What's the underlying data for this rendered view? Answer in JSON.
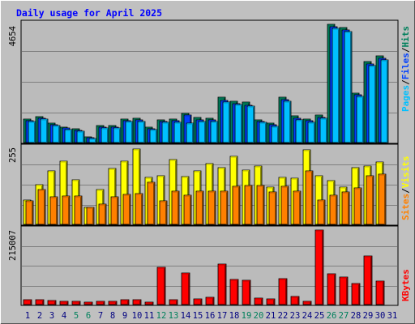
{
  "chart_data": [
    {
      "type": "bar",
      "title": "Daily usage for April 2025",
      "panel": "hits/files/pages",
      "ymax_label": "4654",
      "ylim": [
        0,
        4654
      ],
      "legend": {
        "placement": "right, vertical",
        "entries": [
          {
            "label": "Pages",
            "color": "#00C0FF"
          },
          {
            "label": "Files",
            "color": "#0040FF"
          },
          {
            "label": "Hits",
            "color": "#00805C"
          }
        ],
        "separator": "/"
      },
      "categories": [
        "1",
        "2",
        "3",
        "4",
        "5",
        "6",
        "7",
        "8",
        "9",
        "10",
        "11",
        "12",
        "13",
        "14",
        "15",
        "16",
        "17",
        "18",
        "19",
        "20",
        "21",
        "22",
        "23",
        "24",
        "25",
        "26",
        "27",
        "28",
        "29",
        "30",
        "31"
      ],
      "weekend_days": [
        "5",
        "6",
        "12",
        "13",
        "19",
        "20",
        "26",
        "27"
      ],
      "series": [
        {
          "name": "Hits",
          "values": [
            940,
            1020,
            760,
            620,
            540,
            220,
            680,
            680,
            940,
            960,
            600,
            900,
            910,
            1160,
            1000,
            960,
            1780,
            1640,
            1580,
            900,
            760,
            1800,
            1060,
            940,
            1080,
            4654,
            4520,
            1960,
            3200,
            3400,
            0
          ]
        },
        {
          "name": "Files",
          "values": [
            860,
            960,
            700,
            560,
            480,
            190,
            600,
            620,
            860,
            880,
            540,
            840,
            850,
            1080,
            900,
            880,
            1660,
            1540,
            1480,
            840,
            700,
            1700,
            960,
            860,
            1000,
            4560,
            4440,
            1880,
            3100,
            3300,
            0
          ]
        },
        {
          "name": "Pages",
          "values": [
            820,
            920,
            660,
            520,
            440,
            160,
            560,
            580,
            820,
            840,
            500,
            800,
            800,
            780,
            820,
            840,
            1600,
            1500,
            1440,
            800,
            640,
            1640,
            900,
            800,
            960,
            4500,
            4380,
            1820,
            3040,
            3240,
            0
          ]
        }
      ]
    },
    {
      "type": "bar",
      "panel": "visits/sites",
      "ymax_label": "255",
      "ylim": [
        0,
        255
      ],
      "legend": {
        "placement": "right, vertical",
        "entries": [
          {
            "label": "Sites",
            "color": "#FF8000"
          },
          {
            "label": "Visits",
            "color": "#FFFF00"
          }
        ],
        "separator": "/"
      },
      "categories": [
        "1",
        "2",
        "3",
        "4",
        "5",
        "6",
        "7",
        "8",
        "9",
        "10",
        "11",
        "12",
        "13",
        "14",
        "15",
        "16",
        "17",
        "18",
        "19",
        "20",
        "21",
        "22",
        "23",
        "24",
        "25",
        "26",
        "27",
        "28",
        "29",
        "30",
        "31"
      ],
      "series": [
        {
          "name": "Visits",
          "values": [
            82,
            132,
            178,
            212,
            148,
            58,
            116,
            186,
            212,
            252,
            156,
            164,
            216,
            160,
            180,
            204,
            190,
            228,
            182,
            194,
            124,
            156,
            154,
            250,
            162,
            146,
            124,
            190,
            196,
            210,
            0
          ]
        },
        {
          "name": "Sites",
          "values": [
            80,
            116,
            92,
            96,
            96,
            58,
            68,
            92,
            100,
            104,
            142,
            80,
            112,
            98,
            112,
            112,
            110,
            128,
            130,
            130,
            108,
            128,
            112,
            178,
            82,
            98,
            108,
            122,
            164,
            168,
            0
          ]
        }
      ]
    },
    {
      "type": "bar",
      "panel": "kbytes",
      "ymax_label": "215007",
      "ylim": [
        0,
        215007
      ],
      "legend": {
        "placement": "right, vertical",
        "entries": [
          {
            "label": "KBytes",
            "color": "#FF0000"
          }
        ]
      },
      "categories": [
        "1",
        "2",
        "3",
        "4",
        "5",
        "6",
        "7",
        "8",
        "9",
        "10",
        "11",
        "12",
        "13",
        "14",
        "15",
        "16",
        "17",
        "18",
        "19",
        "20",
        "21",
        "22",
        "23",
        "24",
        "25",
        "26",
        "27",
        "28",
        "29",
        "30",
        "31"
      ],
      "series": [
        {
          "name": "KBytes",
          "values": [
            14000,
            14000,
            11000,
            10000,
            9000,
            6000,
            9000,
            10000,
            14000,
            13000,
            7000,
            107000,
            14000,
            92000,
            17000,
            21000,
            117000,
            72000,
            70000,
            18000,
            17000,
            75000,
            23000,
            9000,
            215007,
            88000,
            79000,
            60000,
            140000,
            68000,
            0
          ]
        }
      ]
    }
  ],
  "colors": {
    "background": "#C0C0C0",
    "panel": "#BBBBBB",
    "title": "#0000FF",
    "weekend_label": "#00805C",
    "weekday_label": "#000080",
    "axis_text": "#000000"
  }
}
